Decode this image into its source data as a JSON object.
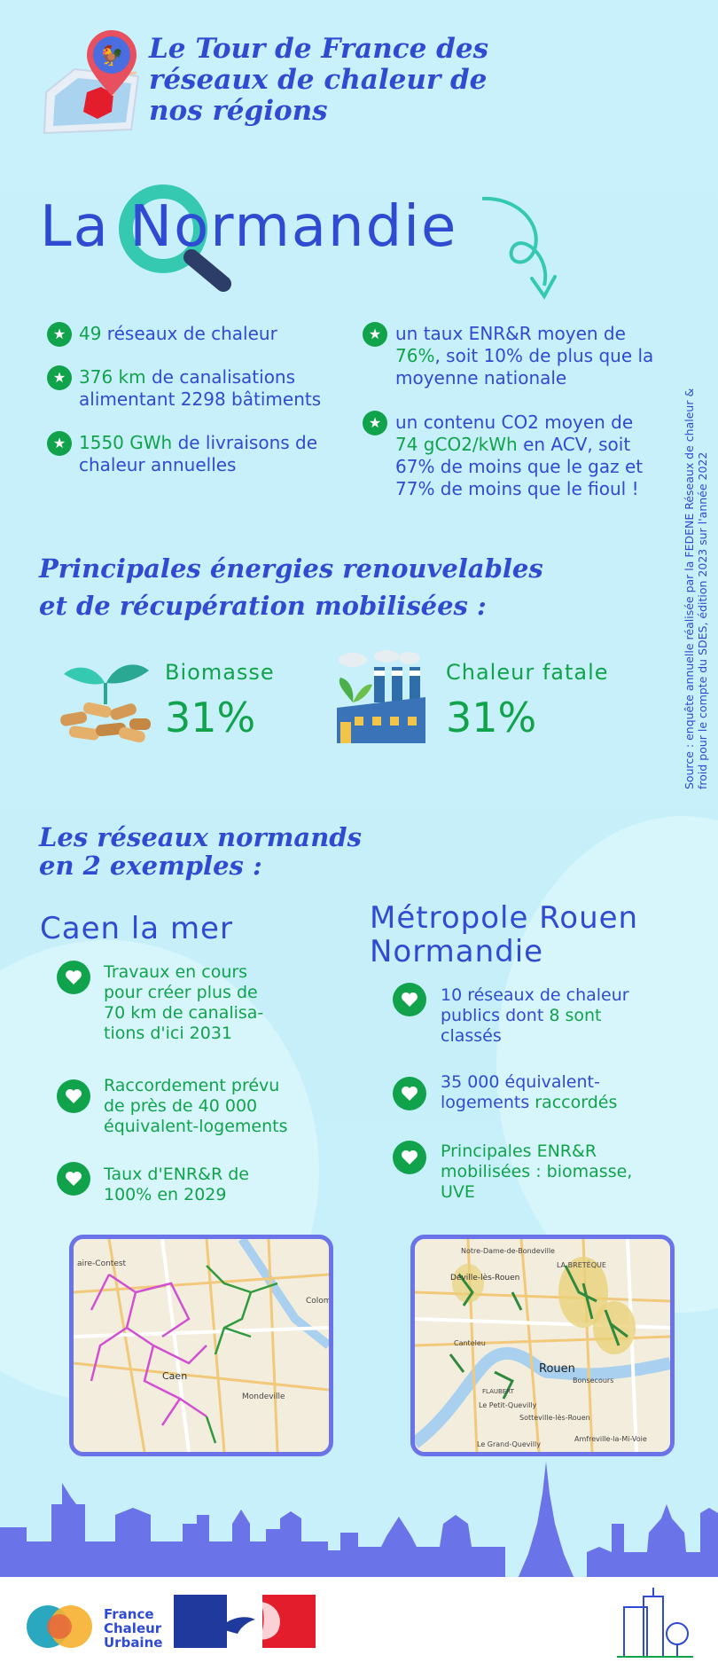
{
  "header": {
    "title_line1": "Le Tour de France des",
    "title_line2": "réseaux de chaleur de",
    "title_line3": "nos régions",
    "region_left": "La ",
    "region_n": "N",
    "region_o": "o",
    "region_rest": "rmandie"
  },
  "facts": {
    "f1_value": "49",
    "f1_text": " réseaux de chaleur",
    "f2_value": "376 km",
    "f2_text_a": " de canalisations",
    "f2_text_b": "alimentant 2298 bâtiments",
    "f3_value": "1550 GWh",
    "f3_text_a": " de livraisons de",
    "f3_text_b": "chaleur annuelles",
    "f4_text_a": "un taux ENR&R moyen de",
    "f4_value": "76%",
    "f4_text_b": ", soit 10% de plus que la",
    "f4_text_c": "moyenne nationale",
    "f5_text_a": "un contenu CO2 moyen de",
    "f5_value": "74 gCO2/kWh",
    "f5_text_b": " en ACV, soit",
    "f5_text_c": "67% de moins que le gaz et",
    "f5_text_d": "77% de moins que le fioul !"
  },
  "source": "Source : enquête annuelle réalisée par la FEDENE Réseaux de chaleur & froid pour le compte du SDES, édition 2023 sur l'année 2022",
  "energies": {
    "title_line1": "Principales énergies renouvelables",
    "title_line2": "et de récupération mobilisées :",
    "items": [
      {
        "name": "Biomasse",
        "pct": "31%"
      },
      {
        "name": "Chaleur fatale",
        "pct": "31%"
      }
    ]
  },
  "examples": {
    "title_line1": "Les réseaux normands",
    "title_line2": "en 2 exemples :",
    "left": {
      "name": "Caen la mer",
      "items": [
        [
          "Travaux en cours",
          "pour créer plus de",
          "70 km de canalisa-",
          "tions d'ici 2031"
        ],
        [
          "Raccordement prévu",
          "de près de 40 000",
          "équivalent-logements"
        ],
        [
          "Taux d'ENR&R de",
          "100% en 2029"
        ]
      ]
    },
    "right": {
      "name_line1": "Métropole Rouen",
      "name_line2": "Normandie",
      "i1_a": "10 réseaux de chaleur",
      "i1_b": "publics dont ",
      "i1_b2": "8 sont",
      "i1_c": "classés",
      "i2_a": "35 000 équivalent-",
      "i2_b": "logements ",
      "i2_b2": "raccordés",
      "i3_a": "Principales ENR&R",
      "i3_b": "mobilisées : biomasse,",
      "i3_c": "UVE"
    }
  },
  "maps": {
    "caen": [
      "aire-Contest",
      "Caen",
      "Mondeville",
      "Colom"
    ],
    "rouen": [
      "Notre-Dame-de-Bondeville",
      "Déville-lès-Rouen",
      "Rouen",
      "Bonsecours",
      "LA BRETÈQUE",
      "Sotteville-lès-Rouen",
      "Amfreville-la-Mi-Voie",
      "FLAUBERT",
      "Le Grand-Quevilly",
      "Le Petit-Quevilly",
      "Canteleu"
    ]
  },
  "footer": {
    "brand_line1": "France",
    "brand_line2": "Chaleur",
    "brand_line3": "Urbaine"
  },
  "colors": {
    "blue": "#2f4bd1",
    "green": "#10a34b",
    "skyline": "#6a73e8",
    "background": "#c9f1fb"
  }
}
